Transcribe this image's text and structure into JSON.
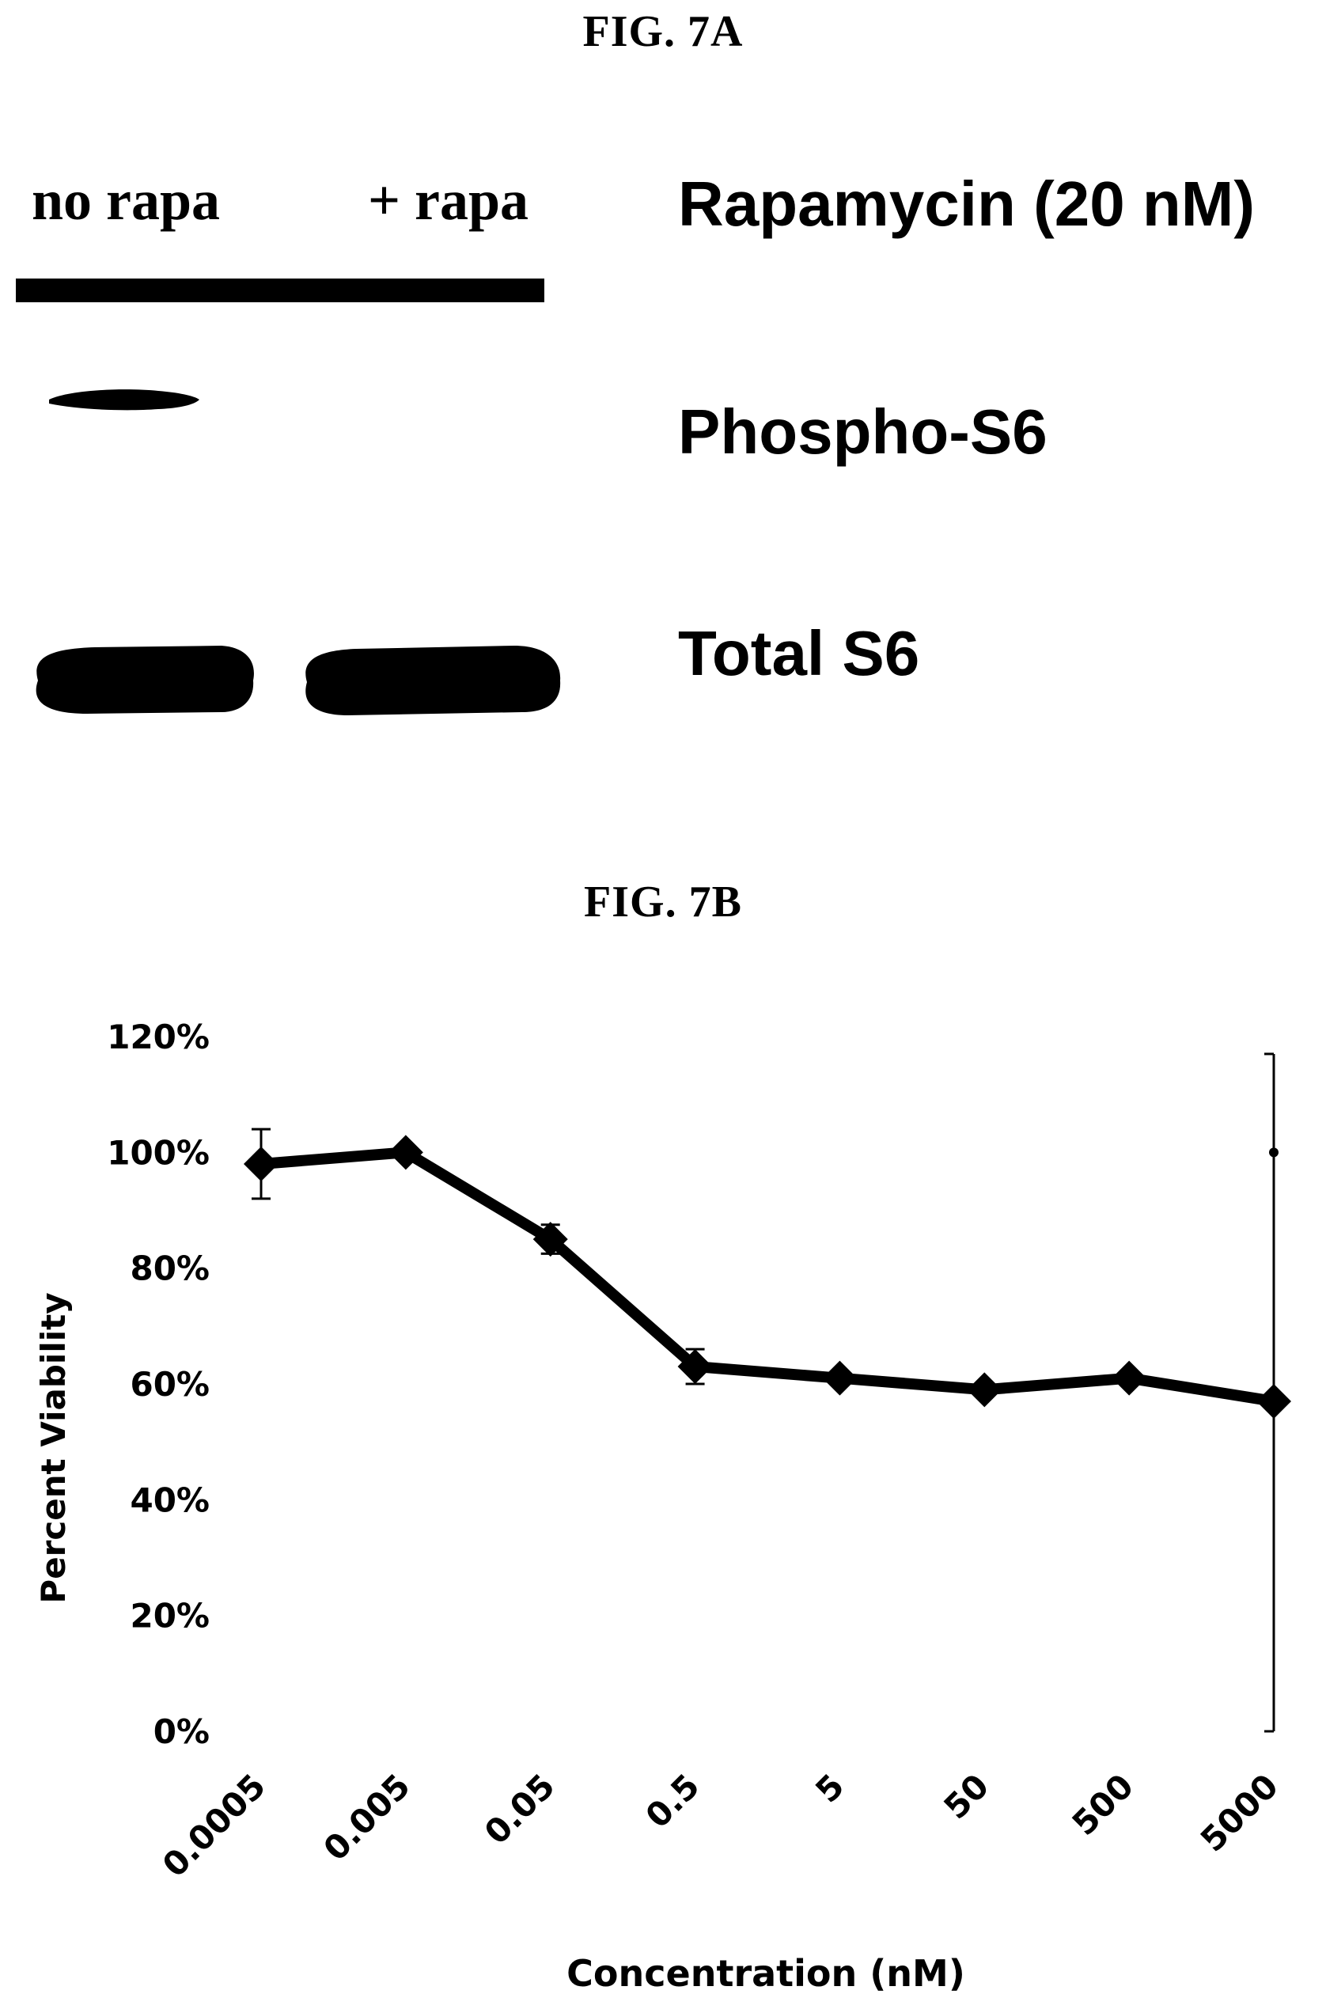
{
  "fig7a": {
    "title": "FIG. 7A",
    "lanes": [
      "no rapa",
      "+ rapa"
    ],
    "labels": {
      "treatment": "Rapamycin (20 nM)",
      "phospho": "Phospho-S6",
      "total": "Total S6"
    }
  },
  "fig7b": {
    "title": "FIG. 7B"
  },
  "chart_data": {
    "type": "line",
    "title": "",
    "xlabel": "Concentration (nM)",
    "ylabel": "Percent Viability",
    "categories": [
      "0.0005",
      "0.005",
      "0.05",
      "0.5",
      "5",
      "50",
      "500",
      "5000"
    ],
    "values": [
      0.98,
      1.0,
      0.85,
      0.63,
      0.61,
      0.59,
      0.61,
      0.57
    ],
    "errors": [
      0.06,
      0.01,
      0.025,
      0.03,
      0.01,
      0.01,
      0.01,
      0.6
    ],
    "ylim": [
      0,
      1.2
    ],
    "yticks": [
      "0%",
      "20%",
      "40%",
      "60%",
      "80%",
      "100%",
      "120%"
    ],
    "ytick_values": [
      0,
      0.2,
      0.4,
      0.6,
      0.8,
      1.0,
      1.2
    ],
    "outlier_point": 1.0,
    "grid": false,
    "colors": {
      "line": "#000000",
      "marker": "#000000"
    }
  }
}
